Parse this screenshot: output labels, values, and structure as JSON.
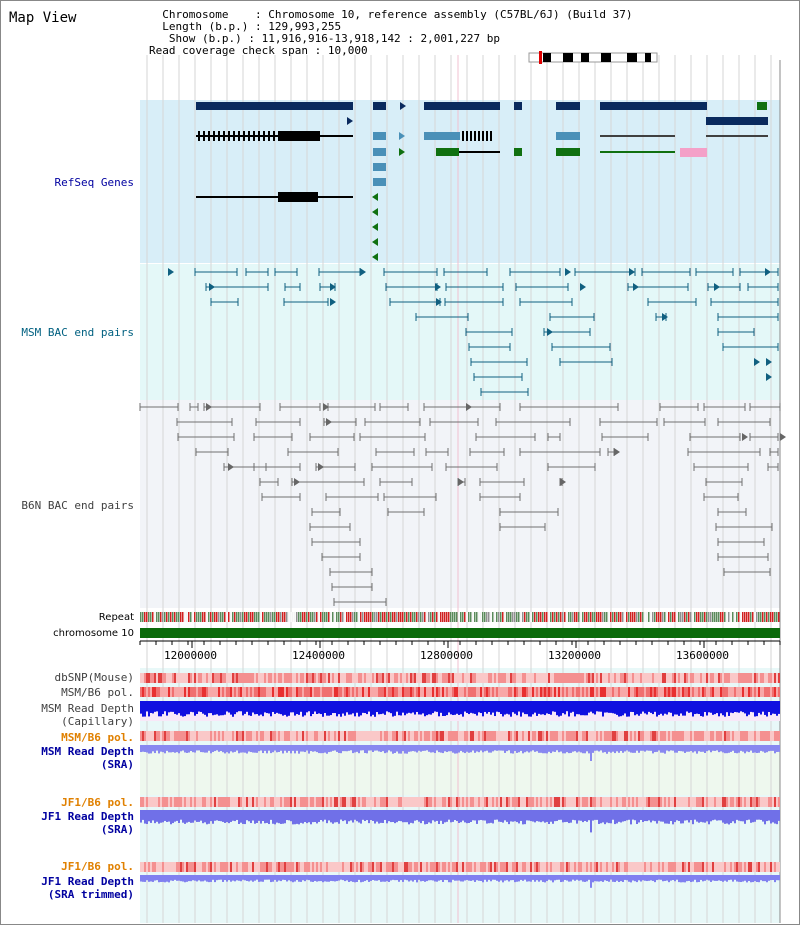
{
  "title": "Map View",
  "info": {
    "chromosome_label": "Chromosome",
    "chromosome_value": "Chromosome 10, reference assembly (C57BL/6J) (Build 37)",
    "length_label": "Length (b.p.)",
    "length_value": "129,993,255",
    "show_label": "Show (b.p.)",
    "show_value": "11,916,916-13,918,142 : 2,001,227 bp",
    "coverage_label": "Read coverage check span",
    "coverage_value": "10,000"
  },
  "tracks": {
    "refseq": "RefSeq Genes",
    "msm_bac": "MSM BAC end pairs",
    "b6n_bac": "B6N BAC end pairs",
    "repeat": "Repeat",
    "chromosome": "chromosome 10",
    "dbsnp": "dbSNP(Mouse)",
    "msm_b6_pol": "MSM/B6 pol.",
    "msm_depth_cap_1": "MSM Read Depth",
    "msm_depth_cap_2": "(Capillary)",
    "msm_b6_pol2": "MSM/B6 pol.",
    "msm_depth_sra_1": "MSM Read Depth",
    "msm_depth_sra_2": "(SRA)",
    "jf1_b6_pol": "JF1/B6 pol.",
    "jf1_depth_1": "JF1 Read Depth",
    "jf1_depth_2": "(SRA)",
    "jf1_b6_pol2": "JF1/B6 pol.",
    "jf1_trim_1": "JF1 Read Depth",
    "jf1_trim_2": "(SRA trimmed)"
  },
  "axis": {
    "ticks": [
      "12000000",
      "12400000",
      "12800000",
      "13200000",
      "13600000"
    ]
  },
  "colors": {
    "refseq_bg": "#d8eef8",
    "msm_bg": "#e4f8f8",
    "b6n_bg": "#f2f4f8",
    "gene_dark": "#0a2a5e",
    "gene_mid": "#4a90b8",
    "gene_green": "#107010",
    "gene_pink": "#f4a0c8",
    "msm_line": "#106080",
    "b6n_line": "#707070",
    "chrom_bar": "#0a6a0a",
    "label_blue": "#0000a0",
    "label_teal": "#006080",
    "label_orange": "#e08000"
  }
}
